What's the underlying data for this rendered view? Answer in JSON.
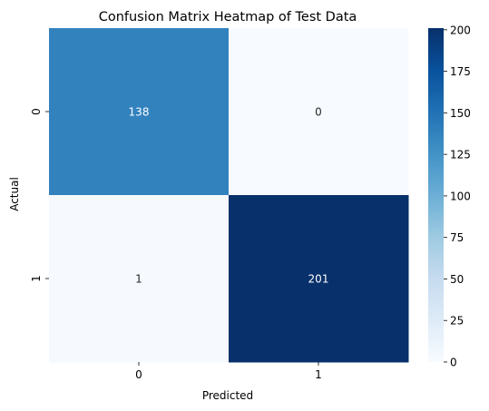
{
  "chart_data": {
    "type": "heatmap",
    "title": "Confusion Matrix Heatmap of Test Data",
    "xlabel": "Predicted",
    "ylabel": "Actual",
    "x_categories": [
      "0",
      "1"
    ],
    "y_categories": [
      "0",
      "1"
    ],
    "matrix": [
      [
        138,
        0
      ],
      [
        1,
        201
      ]
    ],
    "colorscale": {
      "name": "Blues",
      "min": 0,
      "max": 201
    },
    "colorbar_ticks": [
      0,
      25,
      50,
      75,
      100,
      125,
      150,
      175,
      200
    ],
    "colors": {
      "low": "#f7fbff",
      "high": "#08306b"
    }
  }
}
